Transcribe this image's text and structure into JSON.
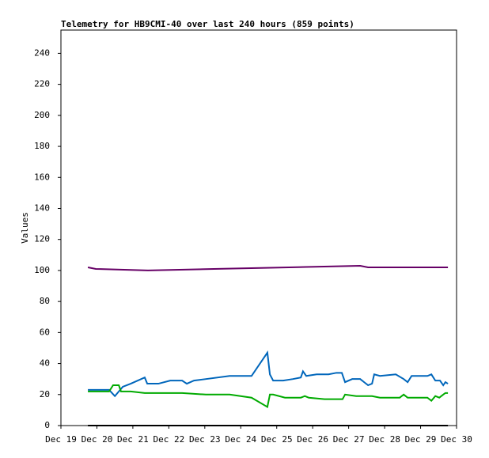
{
  "chart_data": {
    "type": "line",
    "title": "Telemetry for HB9CMI-40 over last 240 hours (859 points)",
    "ylabel": "Values",
    "xlim": [
      19,
      30
    ],
    "xticks": [
      {
        "value": 19,
        "label": "Dec 19"
      },
      {
        "value": 20,
        "label": "Dec 20"
      },
      {
        "value": 21,
        "label": "Dec 21"
      },
      {
        "value": 22,
        "label": "Dec 22"
      },
      {
        "value": 23,
        "label": "Dec 23"
      },
      {
        "value": 24,
        "label": "Dec 24"
      },
      {
        "value": 25,
        "label": "Dec 25"
      },
      {
        "value": 26,
        "label": "Dec 26"
      },
      {
        "value": 27,
        "label": "Dec 27"
      },
      {
        "value": 28,
        "label": "Dec 28"
      },
      {
        "value": 29,
        "label": "Dec 29"
      },
      {
        "value": 30,
        "label": "Dec 30"
      }
    ],
    "ylim": [
      0,
      255
    ],
    "yticks": [
      0,
      20,
      40,
      60,
      80,
      100,
      120,
      140,
      160,
      180,
      200,
      220,
      240
    ],
    "grid": false,
    "series": [
      {
        "color": "#660066",
        "x": [
          19.75,
          19.97,
          21.42,
          23.25,
          25.34,
          27.32,
          27.54,
          29.76
        ],
        "values": [
          102,
          101,
          100,
          101,
          102,
          103,
          102,
          102
        ]
      },
      {
        "color": "#0066bb",
        "x": [
          19.75,
          20.34,
          20.5,
          20.61,
          20.72,
          20.94,
          21.33,
          21.4,
          21.71,
          22.04,
          22.37,
          22.5,
          22.7,
          23.03,
          23.69,
          24.3,
          24.74,
          24.81,
          24.9,
          25.18,
          25.45,
          25.67,
          25.73,
          25.82,
          26.11,
          26.44,
          26.66,
          26.81,
          26.9,
          27.1,
          27.32,
          27.43,
          27.54,
          27.65,
          27.71,
          27.87,
          28.31,
          28.53,
          28.64,
          28.75,
          29.19,
          29.3,
          29.41,
          29.54,
          29.63,
          29.69,
          29.76
        ],
        "values": [
          23,
          23,
          19,
          22,
          25,
          27,
          31,
          27,
          27,
          29,
          29,
          27,
          29,
          30,
          32,
          32,
          47,
          33,
          29,
          29,
          30,
          31,
          35,
          32,
          33,
          33,
          34,
          34,
          28,
          30,
          30,
          28,
          26,
          27,
          33,
          32,
          33,
          30,
          28,
          32,
          32,
          33,
          29,
          29,
          26,
          28,
          27
        ]
      },
      {
        "color": "#00aa00",
        "x": [
          19.75,
          20.34,
          20.45,
          20.61,
          20.67,
          20.94,
          21.33,
          21.71,
          22.37,
          23.03,
          23.69,
          24.3,
          24.74,
          24.81,
          24.9,
          25.23,
          25.67,
          25.78,
          25.89,
          26.33,
          26.83,
          26.9,
          27.21,
          27.65,
          27.87,
          28.42,
          28.53,
          28.64,
          29.19,
          29.3,
          29.41,
          29.52,
          29.63,
          29.69,
          29.76
        ],
        "values": [
          22,
          22,
          26,
          26,
          22,
          22,
          21,
          21,
          21,
          20,
          20,
          18,
          12,
          20,
          20,
          18,
          18,
          19,
          18,
          17,
          17,
          20,
          19,
          19,
          18,
          18,
          20,
          18,
          18,
          16,
          19,
          18,
          20,
          21,
          21
        ]
      },
      {
        "color": "#000000",
        "x": [
          19.75,
          29.76
        ],
        "values": [
          0,
          0
        ]
      }
    ]
  }
}
